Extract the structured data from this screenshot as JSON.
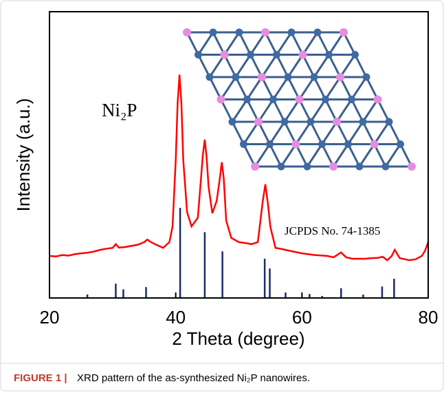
{
  "chart_data": {
    "type": "line",
    "x_label": "2 Theta (degree)",
    "y_label": "Intensity (a.u.)",
    "compound_label": "Ni₂P",
    "xlim": [
      20,
      80
    ],
    "xticks": [
      20,
      40,
      60,
      80
    ],
    "ylim": [
      0,
      100
    ],
    "series": [
      {
        "color": "#ff0000",
        "x": [
          20,
          21,
          22,
          23,
          24,
          25,
          26,
          27,
          28,
          29,
          30,
          30.5,
          31,
          32,
          33,
          34,
          35,
          35.5,
          36,
          37,
          38,
          39,
          39.5,
          40,
          40.3,
          40.6,
          40.9,
          41.2,
          41.8,
          42.5,
          43.5,
          44,
          44.3,
          44.6,
          44.9,
          45.2,
          45.8,
          46.5,
          47,
          47.3,
          47.6,
          48,
          48.8,
          50,
          51,
          52,
          53,
          53.3,
          53.8,
          54.2,
          54.6,
          55,
          55.8,
          57,
          58,
          60,
          62,
          64,
          65,
          66.2,
          67,
          68,
          70,
          71,
          72,
          72.8,
          73.5,
          74.2,
          74.7,
          75.5,
          77,
          78,
          79,
          79.5,
          80
        ],
        "values": [
          14.7,
          14.5,
          15,
          14.8,
          15.3,
          15.6,
          15.8,
          16.2,
          16.8,
          17.2,
          17.5,
          18.8,
          17.6,
          17.8,
          18.2,
          18.6,
          19.5,
          20.4,
          19.6,
          18.5,
          17.5,
          19.5,
          25,
          48,
          68,
          78,
          68,
          48,
          30,
          25,
          28,
          41.6,
          50,
          55.3,
          49,
          39,
          29.6,
          34,
          42,
          47.4,
          42,
          27,
          21,
          19.5,
          19.2,
          18.8,
          19.5,
          24.8,
          34,
          39.7,
          33,
          24.8,
          17.5,
          17,
          16.5,
          15.6,
          15,
          14.7,
          14.2,
          15.9,
          14.2,
          13.7,
          13.7,
          13.9,
          14,
          14.4,
          13.2,
          14.6,
          16.8,
          13.9,
          13.2,
          13.5,
          14.7,
          16.5,
          19.5
        ]
      }
    ],
    "reference": {
      "label": "JCPDS No. 74-1385",
      "color": "#1a2a6c",
      "positions": [
        26.0,
        30.5,
        31.7,
        35.3,
        40.7,
        44.6,
        47.4,
        54.1,
        54.9,
        57.4,
        61.2,
        63.2,
        66.2,
        69.7,
        72.7,
        74.6
      ],
      "heights": [
        1.2,
        5,
        3,
        3.8,
        31.5,
        23,
        16.3,
        13.7,
        10.3,
        1.9,
        1.4,
        0.7,
        3.4,
        1.2,
        4,
        6.7
      ]
    }
  },
  "caption": {
    "label": "FIGURE 1 |",
    "text": "XRD pattern of the as-synthesized Ni₂P nanowires."
  }
}
